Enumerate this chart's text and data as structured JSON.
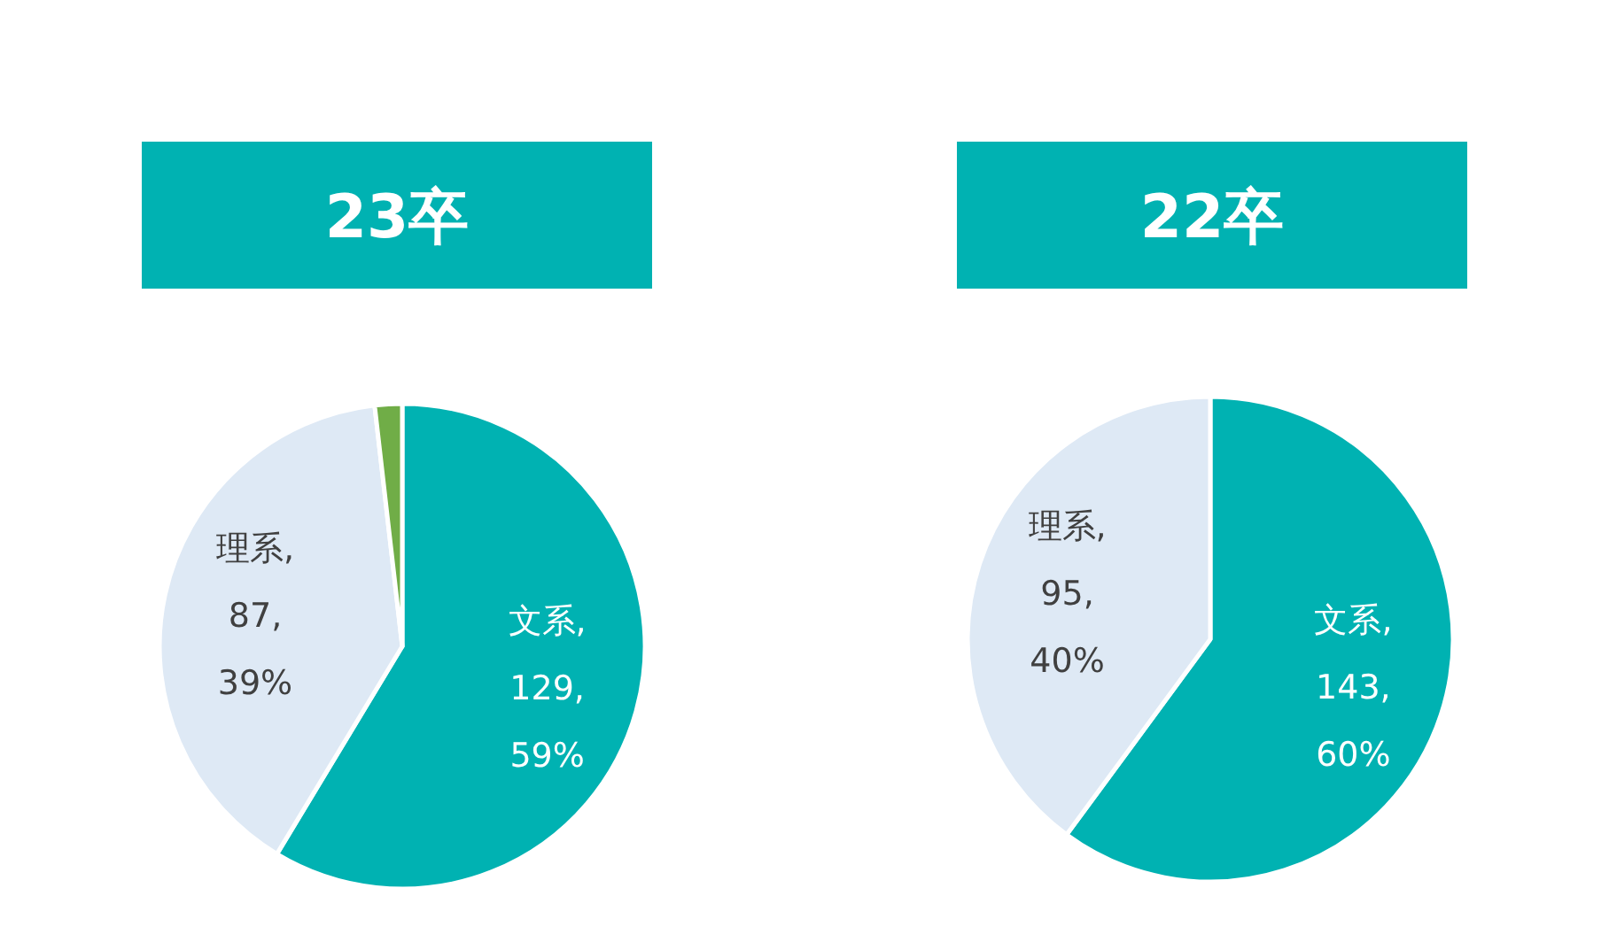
{
  "chart_data": [
    {
      "type": "pie",
      "title": "23卒",
      "categories": [
        "文系",
        "理系",
        null
      ],
      "values": [
        129,
        87,
        4
      ],
      "colors": [
        "#00b2b2",
        "#dee9f5",
        "#70ad47"
      ],
      "value_labels": [
        ",\n129,\n59%",
        ",\n87,\n39%",
        null
      ]
    },
    {
      "type": "pie",
      "title": "22卒",
      "categories": [
        "文系",
        "理系"
      ],
      "values": [
        143,
        95
      ],
      "colors": [
        "#00b2b2",
        "#dee9f5"
      ],
      "value_labels": [
        ",\n143,\n60%",
        ",\n95,\n40%"
      ]
    }
  ]
}
